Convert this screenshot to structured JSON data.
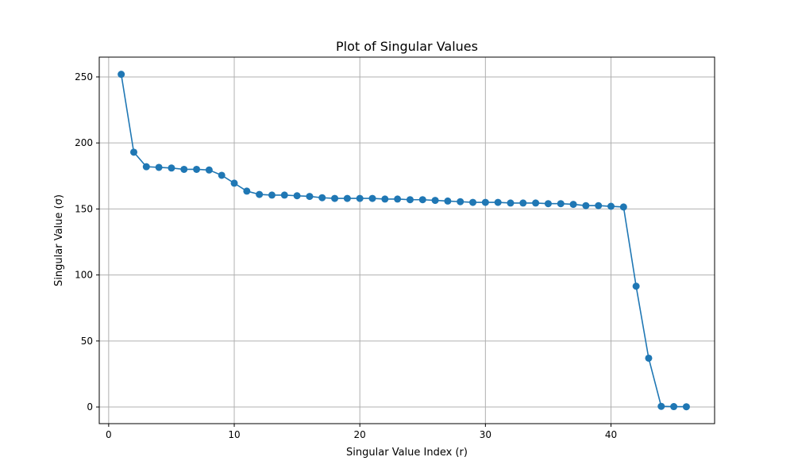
{
  "chart_data": {
    "type": "line",
    "title": "Plot of Singular Values",
    "xlabel": "Singular Value Index (r)",
    "ylabel": "Singular Value (σ)",
    "xlim": [
      -0.75,
      48.25
    ],
    "ylim": [
      -12.6,
      265
    ],
    "xticks": [
      0,
      10,
      20,
      30,
      40
    ],
    "yticks": [
      0,
      50,
      100,
      150,
      200,
      250
    ],
    "grid": true,
    "series": [
      {
        "color": "#1f77b4",
        "marker": "circle",
        "x": [
          1,
          2,
          3,
          4,
          5,
          6,
          7,
          8,
          9,
          10,
          11,
          12,
          13,
          14,
          15,
          16,
          17,
          18,
          19,
          20,
          21,
          22,
          23,
          24,
          25,
          26,
          27,
          28,
          29,
          30,
          31,
          32,
          33,
          34,
          35,
          36,
          37,
          38,
          39,
          40,
          41,
          42,
          43,
          44,
          45,
          46
        ],
        "y": [
          252,
          193,
          182,
          181.5,
          181,
          180,
          180,
          179.5,
          175.5,
          169.5,
          163.5,
          161,
          160.5,
          160.5,
          160,
          159.5,
          158.5,
          158,
          158,
          158,
          158,
          157.5,
          157.5,
          157,
          157,
          156.5,
          156,
          155.5,
          155,
          155,
          155,
          154.5,
          154.5,
          154.5,
          154,
          154,
          153.5,
          152.5,
          152.5,
          152,
          151.5,
          91.5,
          37,
          0.5,
          0.3,
          0.2
        ]
      }
    ]
  }
}
